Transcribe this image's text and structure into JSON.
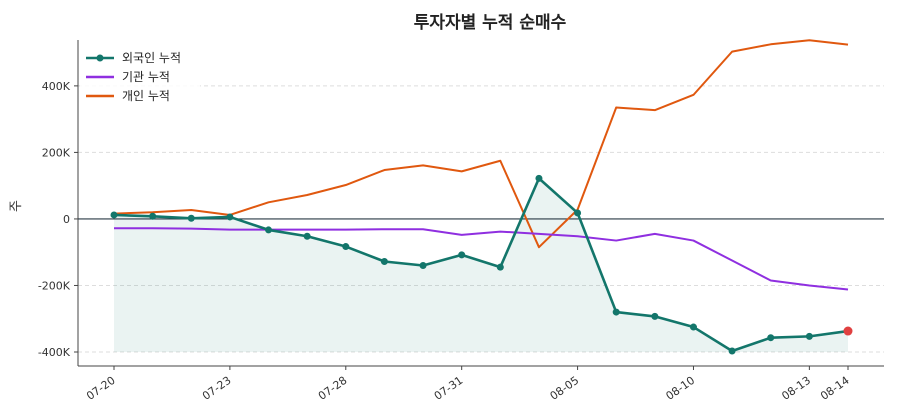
{
  "chart_data": {
    "type": "line",
    "title": "투자자별 누적 순매수",
    "xlabel": "",
    "ylabel": "주",
    "x": [
      "07-20",
      "07-21",
      "07-22",
      "07-23",
      "07-24",
      "07-27",
      "07-28",
      "07-29",
      "07-30",
      "07-31",
      "08-03",
      "08-04",
      "08-05",
      "08-06",
      "08-07",
      "08-10",
      "08-11",
      "08-12",
      "08-13",
      "08-14"
    ],
    "x_tick_labels": [
      "07-20",
      "07-23",
      "07-28",
      "07-31",
      "08-05",
      "08-10",
      "08-13",
      "08-14"
    ],
    "y_tick_labels": [
      "-400K",
      "-200K",
      "0",
      "200K",
      "400K"
    ],
    "y_ticks": [
      -400000,
      -200000,
      0,
      200000,
      400000
    ],
    "ylim": [
      -400000,
      580000
    ],
    "grid": "y-dashed",
    "legend_position": "top-left",
    "series": [
      {
        "name": "외국인 누적",
        "color": "#13766b",
        "marker": "circle",
        "fill": true,
        "values": [
          12000,
          8000,
          2000,
          6000,
          -33000,
          -52000,
          -83000,
          -128000,
          -140000,
          -108000,
          -145000,
          122000,
          18000,
          -280000,
          -293000,
          -325000,
          -397000,
          -357000,
          -353000,
          -337000
        ]
      },
      {
        "name": "기관 누적",
        "color": "#8f2fe0",
        "marker": "none",
        "fill": false,
        "values": [
          -28000,
          -28000,
          -29000,
          -32000,
          -32000,
          -32000,
          -32000,
          -31000,
          -31000,
          -48000,
          -38000,
          -45000,
          -52000,
          -65000,
          -45000,
          -65000,
          -125000,
          -185000,
          -200000,
          -212000
        ]
      },
      {
        "name": "개인 누적",
        "color": "#e0580f",
        "marker": "none",
        "fill": false,
        "values": [
          16000,
          20000,
          27000,
          12000,
          50000,
          72000,
          102000,
          147000,
          161000,
          143000,
          175000,
          -85000,
          28000,
          335000,
          327000,
          373000,
          503000,
          525000,
          537000,
          524000
        ]
      }
    ],
    "highlight_last_point_color": "#e04040"
  }
}
